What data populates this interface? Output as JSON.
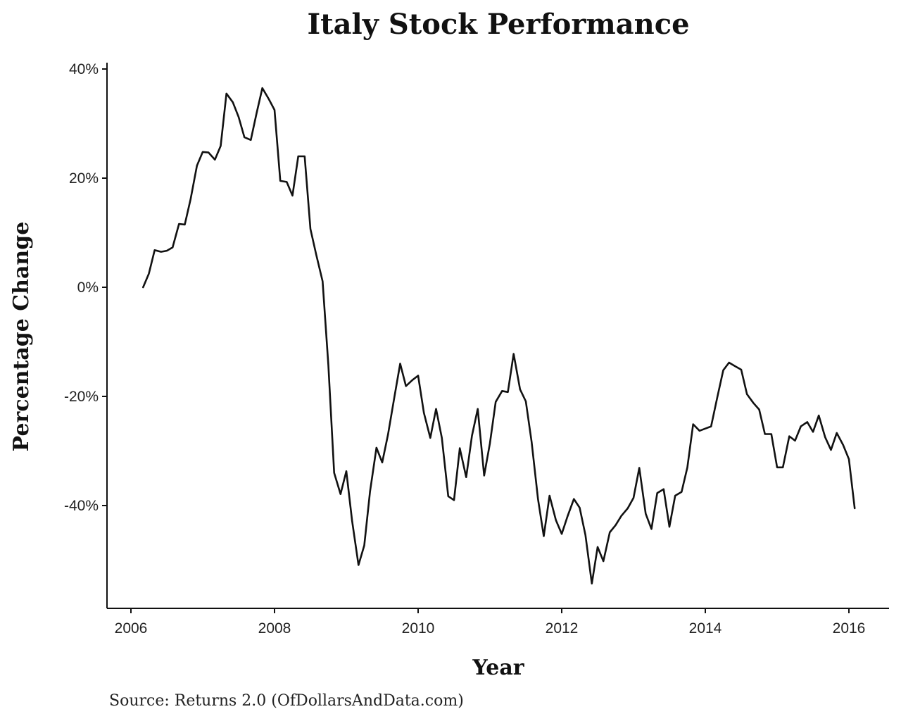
{
  "chart_data": {
    "type": "line",
    "title": "Italy Stock Performance",
    "xlabel": "Year",
    "ylabel": "Percentage Change",
    "source": "Source: Returns 2.0 (OfDollarsAndData.com)",
    "xlim": [
      2005.7,
      2016.6
    ],
    "ylim": [
      -58,
      41
    ],
    "x_ticks": [
      2006,
      2008,
      2010,
      2012,
      2014,
      2016
    ],
    "x_tick_labels": [
      "2006",
      "2008",
      "2010",
      "2012",
      "2014",
      "2016"
    ],
    "y_ticks": [
      40,
      20,
      0,
      -20,
      -40
    ],
    "y_tick_labels": [
      "40%",
      "20%",
      "0%",
      "-20%",
      "-40%"
    ],
    "grid": false,
    "legend": "none",
    "line_color": "#111111",
    "series": [
      {
        "x": [
          2006.17,
          2006.25,
          2006.33,
          2006.42,
          2006.5,
          2006.58,
          2006.67,
          2006.75,
          2006.83,
          2006.92,
          2007.0,
          2007.08,
          2007.17,
          2007.25,
          2007.33,
          2007.42,
          2007.5,
          2007.58,
          2007.67,
          2007.75,
          2007.83,
          2007.92,
          2008.0,
          2008.08,
          2008.17,
          2008.25,
          2008.33,
          2008.42,
          2008.5,
          2008.58,
          2008.67,
          2008.75,
          2008.83,
          2008.92,
          2009.0,
          2009.08,
          2009.17,
          2009.25,
          2009.33,
          2009.42,
          2009.5,
          2009.58,
          2009.67,
          2009.75,
          2009.83,
          2009.92,
          2010.0,
          2010.08,
          2010.17,
          2010.25,
          2010.33,
          2010.42,
          2010.5,
          2010.58,
          2010.67,
          2010.75,
          2010.83,
          2010.92,
          2011.0,
          2011.08,
          2011.17,
          2011.25,
          2011.33,
          2011.42,
          2011.5,
          2011.58,
          2011.67,
          2011.75,
          2011.83,
          2011.92,
          2012.0,
          2012.08,
          2012.17,
          2012.25,
          2012.33,
          2012.42,
          2012.5,
          2012.58,
          2012.67,
          2012.75,
          2012.83,
          2012.92,
          2013.0,
          2013.08,
          2013.17,
          2013.25,
          2013.33,
          2013.42,
          2013.5,
          2013.58,
          2013.67,
          2013.75,
          2013.83,
          2013.92,
          2014.0,
          2014.08,
          2014.17,
          2014.25,
          2014.33,
          2014.42,
          2014.5,
          2014.58,
          2014.67,
          2014.75,
          2014.83,
          2014.92,
          2015.0,
          2015.08,
          2015.17,
          2015.25,
          2015.33,
          2015.42,
          2015.5,
          2015.58,
          2015.67,
          2015.75,
          2015.83,
          2015.92,
          2016.0,
          2016.08
        ],
        "y": [
          0,
          2.5,
          6.8,
          6.5,
          6.7,
          7.3,
          11.6,
          11.5,
          16.1,
          22.3,
          24.8,
          24.7,
          23.4,
          25.9,
          35.5,
          33.9,
          31.2,
          27.5,
          27.0,
          31.9,
          36.5,
          34.5,
          32.5,
          19.5,
          19.3,
          16.8,
          24.0,
          24.0,
          10.7,
          6.0,
          1.1,
          -14.3,
          -34.0,
          -37.9,
          -33.7,
          -42.8,
          -50.9,
          -47.3,
          -37.4,
          -29.4,
          -32.1,
          -27.0,
          -20.1,
          -14.0,
          -18.1,
          -17.0,
          -16.2,
          -23.0,
          -27.6,
          -22.3,
          -27.6,
          -38.3,
          -39.0,
          -29.5,
          -34.8,
          -27.2,
          -22.3,
          -34.5,
          -28.6,
          -21.0,
          -19.0,
          -19.2,
          -12.2,
          -18.7,
          -20.9,
          -28.3,
          -38.8,
          -45.6,
          -38.2,
          -42.7,
          -45.2,
          -42.0,
          -38.8,
          -40.4,
          -45.4,
          -54.3,
          -47.6,
          -50.2,
          -44.9,
          -43.6,
          -41.9,
          -40.5,
          -38.6,
          -33.1,
          -41.5,
          -44.3,
          -37.7,
          -37.0,
          -43.9,
          -38.2,
          -37.5,
          -33.0,
          -25.1,
          -26.3,
          -25.9,
          -25.5,
          -20.0,
          -15.2,
          -13.8,
          -14.5,
          -15.1,
          -19.6,
          -21.2,
          -22.4,
          -26.9,
          -26.9,
          -33.0,
          -33.0,
          -27.3,
          -28.1,
          -25.5,
          -24.7,
          -26.5,
          -23.5,
          -27.5,
          -29.8,
          -26.7,
          -28.9,
          -31.5,
          -40.5
        ]
      }
    ]
  }
}
